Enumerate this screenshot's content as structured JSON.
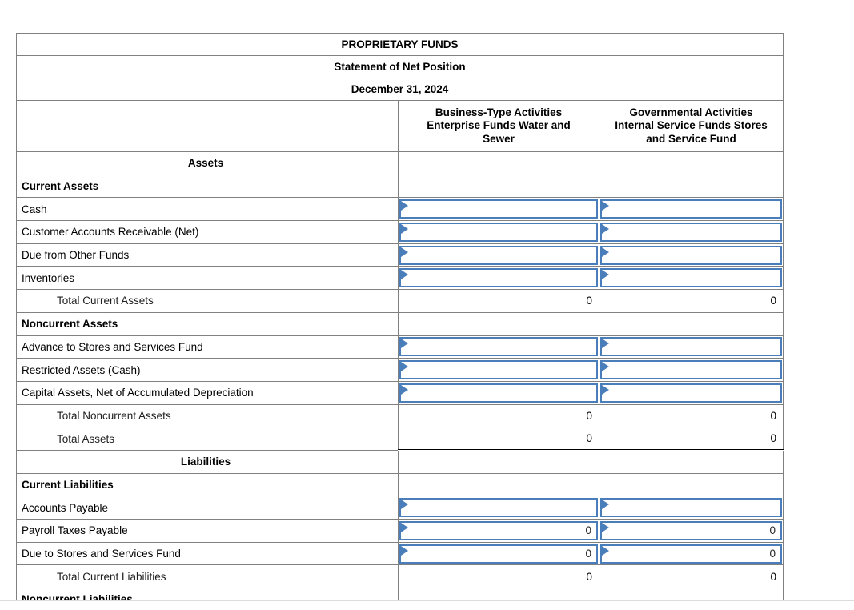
{
  "table": {
    "titles": [
      "PROPRIETARY FUNDS",
      "Statement of Net Position",
      "December 31, 2024"
    ],
    "column_headers": [
      "Business-Type Activities Enterprise Funds Water and Sewer",
      "Governmental Activities Internal Service Funds Stores and Service Fund"
    ],
    "rows": [
      {
        "type": "section_center",
        "label": "Assets"
      },
      {
        "type": "section",
        "label": "Current Assets"
      },
      {
        "type": "input",
        "label": "Cash",
        "values": [
          "",
          ""
        ]
      },
      {
        "type": "input",
        "label": "Customer Accounts Receivable (Net)",
        "values": [
          "",
          ""
        ]
      },
      {
        "type": "input",
        "label": "Due from Other Funds",
        "values": [
          "",
          ""
        ]
      },
      {
        "type": "input",
        "label": "Inventories",
        "values": [
          "",
          ""
        ]
      },
      {
        "type": "total",
        "label": "Total Current Assets",
        "values": [
          "0",
          "0"
        ]
      },
      {
        "type": "section",
        "label": "Noncurrent Assets"
      },
      {
        "type": "input",
        "label": "Advance to Stores and Services Fund",
        "values": [
          "",
          ""
        ]
      },
      {
        "type": "input",
        "label": "Restricted Assets (Cash)",
        "values": [
          "",
          ""
        ]
      },
      {
        "type": "input",
        "label": "Capital Assets, Net of Accumulated Depreciation",
        "values": [
          "",
          ""
        ]
      },
      {
        "type": "total",
        "label": "Total Noncurrent Assets",
        "values": [
          "0",
          "0"
        ]
      },
      {
        "type": "total_double",
        "label": "Total Assets",
        "values": [
          "0",
          "0"
        ]
      },
      {
        "type": "section_center",
        "label": "Liabilities"
      },
      {
        "type": "section",
        "label": "Current Liabilities"
      },
      {
        "type": "input",
        "label": "Accounts Payable",
        "values": [
          "",
          ""
        ]
      },
      {
        "type": "input",
        "label": "Payroll Taxes Payable",
        "values": [
          "0",
          "0"
        ]
      },
      {
        "type": "input",
        "label": "Due to Stores and Services Fund",
        "values": [
          "0",
          "0"
        ]
      },
      {
        "type": "total",
        "label": "Total Current Liabilities",
        "values": [
          "0",
          "0"
        ]
      },
      {
        "type": "section",
        "label": "Noncurrent Liabilities"
      }
    ]
  },
  "colors": {
    "header_blue": "#79aae0",
    "grid_gray": "#808080",
    "input_border_blue": "#4a7ebb",
    "total_rule_black": "#000000"
  }
}
